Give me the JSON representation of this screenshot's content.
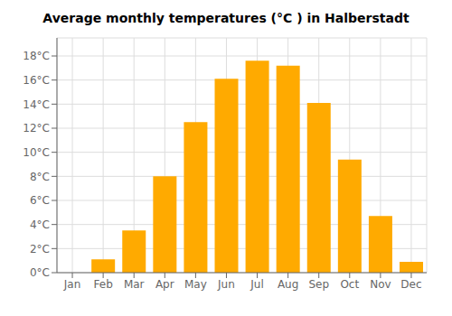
{
  "chart_data": {
    "type": "bar",
    "title": "Average monthly temperatures (°C ) in Halberstadt",
    "categories": [
      "Jan",
      "Feb",
      "Mar",
      "Apr",
      "May",
      "Jun",
      "Jul",
      "Aug",
      "Sep",
      "Oct",
      "Nov",
      "Dec"
    ],
    "values": [
      0.0,
      1.1,
      3.5,
      8.0,
      12.5,
      16.1,
      17.6,
      17.2,
      14.1,
      9.4,
      4.7,
      0.9
    ],
    "color": "#FFAA00",
    "ylim": [
      0,
      19.5
    ],
    "yticks": [
      {
        "value": 0,
        "label": "0°C"
      },
      {
        "value": 2,
        "label": "2°C"
      },
      {
        "value": 4,
        "label": "4°C"
      },
      {
        "value": 6,
        "label": "6°C"
      },
      {
        "value": 8,
        "label": "8°C"
      },
      {
        "value": 10,
        "label": "10°C"
      },
      {
        "value": 12,
        "label": "12°C"
      },
      {
        "value": 14,
        "label": "14°C"
      },
      {
        "value": 16,
        "label": "16°C"
      },
      {
        "value": 18,
        "label": "18°C"
      }
    ],
    "grid": true
  }
}
